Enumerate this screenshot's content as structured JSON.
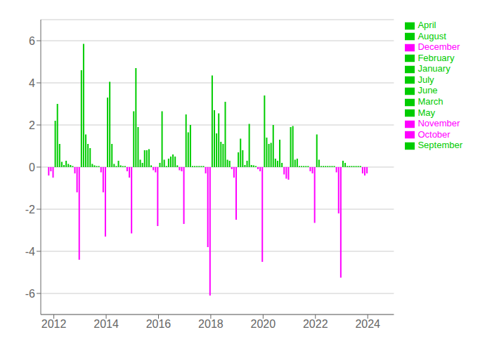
{
  "chart_data": {
    "type": "bar",
    "xlim": [
      2011.5,
      2025.0
    ],
    "xticks": [
      2012,
      2014,
      2016,
      2018,
      2020,
      2022,
      2024
    ],
    "ylim": [
      -7,
      7
    ],
    "yticks": [
      -6,
      -4,
      -2,
      0,
      2,
      4,
      6
    ],
    "grid": true,
    "legend": "right",
    "series": [
      {
        "name": "January",
        "color": "#00cc00",
        "x": [
          2012.0416666666667,
          2013.0416666666667,
          2014.0416666666667,
          2015.0416666666667,
          2016.0416666666667,
          2017.0416666666667,
          2018.0416666666667,
          2019.0416666666667,
          2020.0416666666667,
          2021.0416666666667,
          2022.0416666666667,
          2023.0416666666667
        ],
        "values": [
          2.2,
          4.6,
          3.3,
          2.65,
          0.2,
          2.5,
          4.35,
          0.7,
          3.4,
          1.9,
          1.55,
          0.3
        ]
      },
      {
        "name": "February",
        "color": "#00cc00",
        "x": [
          2012.125,
          2013.125,
          2014.125,
          2015.125,
          2016.125,
          2017.125,
          2018.125,
          2019.125,
          2020.125,
          2021.125,
          2022.125,
          2023.125
        ],
        "values": [
          3.0,
          5.85,
          4.05,
          4.7,
          2.65,
          1.65,
          2.7,
          1.35,
          1.4,
          1.95,
          0.35,
          0.2
        ]
      },
      {
        "name": "March",
        "color": "#00cc00",
        "x": [
          2012.2083333333333,
          2013.2083333333333,
          2014.2083333333333,
          2015.2083333333333,
          2016.2083333333333,
          2017.2083333333333,
          2018.2083333333333,
          2019.2083333333333,
          2020.2083333333333,
          2021.2083333333333,
          2022.2083333333333,
          2023.2083333333333
        ],
        "values": [
          1.1,
          1.55,
          1.1,
          1.9,
          0.35,
          2.0,
          1.6,
          0.8,
          1.1,
          0.35,
          0.05,
          0.05
        ]
      },
      {
        "name": "April",
        "color": "#00cc00",
        "x": [
          2012.2916666666667,
          2013.2916666666667,
          2014.2916666666667,
          2015.2916666666667,
          2016.2916666666667,
          2017.2916666666667,
          2018.2916666666667,
          2019.2916666666667,
          2020.2916666666667,
          2021.2916666666667,
          2022.2916666666667,
          2023.2916666666667
        ],
        "values": [
          0.25,
          1.1,
          0.15,
          0.35,
          0.05,
          0.05,
          2.55,
          0.1,
          1.15,
          0.4,
          0.05,
          0.05
        ]
      },
      {
        "name": "May",
        "color": "#00cc00",
        "x": [
          2012.375,
          2013.375,
          2014.375,
          2015.375,
          2016.375,
          2017.375,
          2018.375,
          2019.375,
          2020.375,
          2021.375,
          2022.375,
          2023.375
        ],
        "values": [
          0.1,
          0.9,
          0.05,
          0.2,
          0.4,
          0.05,
          1.2,
          0.3,
          2.0,
          0.05,
          0.05,
          0.05
        ]
      },
      {
        "name": "June",
        "color": "#00cc00",
        "x": [
          2012.4583333333333,
          2013.4583333333333,
          2014.4583333333333,
          2015.4583333333333,
          2016.4583333333333,
          2017.4583333333333,
          2018.4583333333333,
          2019.4583333333333,
          2020.4583333333333,
          2021.4583333333333,
          2022.4583333333333,
          2023.4583333333333
        ],
        "values": [
          0.3,
          0.15,
          0.3,
          0.8,
          0.5,
          0.05,
          1.1,
          2.05,
          0.4,
          0.05,
          0.05,
          0.05
        ]
      },
      {
        "name": "July",
        "color": "#00cc00",
        "x": [
          2012.5416666666667,
          2013.5416666666667,
          2014.5416666666667,
          2015.5416666666667,
          2016.5416666666667,
          2017.5416666666667,
          2018.5416666666667,
          2019.5416666666667,
          2020.5416666666667,
          2021.5416666666667,
          2022.5416666666667,
          2023.5416666666667
        ],
        "values": [
          0.15,
          0.08,
          0.08,
          0.8,
          0.6,
          0.05,
          3.1,
          0.1,
          0.3,
          0.05,
          0.05,
          0.05
        ]
      },
      {
        "name": "August",
        "color": "#00cc00",
        "x": [
          2012.625,
          2013.625,
          2014.625,
          2015.625,
          2016.625,
          2017.625,
          2018.625,
          2019.625,
          2020.625,
          2021.625,
          2022.625,
          2023.625
        ],
        "values": [
          0.1,
          0.05,
          0.05,
          0.85,
          0.5,
          0.05,
          0.35,
          0.08,
          1.3,
          0.05,
          0.05,
          0.05
        ]
      },
      {
        "name": "September",
        "color": "#00cc00",
        "x": [
          2012.7083333333333,
          2013.7083333333333,
          2014.7083333333333,
          2015.7083333333333,
          2016.7083333333333,
          2017.7083333333333,
          2018.7083333333333,
          2019.7083333333333,
          2020.7083333333333,
          2021.7083333333333,
          2022.7083333333333,
          2023.7083333333333
        ],
        "values": [
          0.05,
          0.05,
          0.05,
          0.08,
          0.08,
          0.05,
          0.3,
          0.05,
          0.2,
          0.05,
          0.05,
          0.05
        ]
      },
      {
        "name": "October",
        "color": "#ff00ff",
        "x": [
          2011.7916666666667,
          2012.7916666666667,
          2013.7916666666667,
          2014.7916666666667,
          2015.7916666666667,
          2016.7916666666667,
          2017.7916666666667,
          2018.7916666666667,
          2019.7916666666667,
          2020.7916666666667,
          2021.7916666666667,
          2022.7916666666667,
          2023.7916666666667
        ],
        "values": [
          -0.4,
          -0.3,
          -0.25,
          -0.2,
          -0.15,
          -0.15,
          -0.3,
          -0.1,
          -0.1,
          -0.35,
          -0.2,
          -0.25,
          -0.3
        ]
      },
      {
        "name": "November",
        "color": "#ff00ff",
        "x": [
          2011.875,
          2012.875,
          2013.875,
          2014.875,
          2015.875,
          2016.875,
          2017.875,
          2018.875,
          2019.875,
          2020.875,
          2021.875,
          2022.875,
          2023.875
        ],
        "values": [
          -0.2,
          -1.2,
          -1.2,
          -0.5,
          -0.25,
          -0.2,
          -3.8,
          -0.5,
          -0.2,
          -0.55,
          -0.3,
          -2.2,
          -0.4
        ]
      },
      {
        "name": "December",
        "color": "#ff00ff",
        "x": [
          2011.9583333333333,
          2012.9583333333333,
          2013.9583333333333,
          2014.9583333333333,
          2015.9583333333333,
          2016.9583333333333,
          2017.9583333333333,
          2018.9583333333333,
          2019.9583333333333,
          2020.9583333333333,
          2021.9583333333333,
          2022.9583333333333,
          2023.9583333333333
        ],
        "values": [
          -0.5,
          -4.4,
          -3.3,
          -3.15,
          -2.8,
          -2.7,
          -6.1,
          -2.5,
          -4.5,
          -0.6,
          -2.65,
          -5.25,
          -0.3
        ]
      }
    ]
  }
}
